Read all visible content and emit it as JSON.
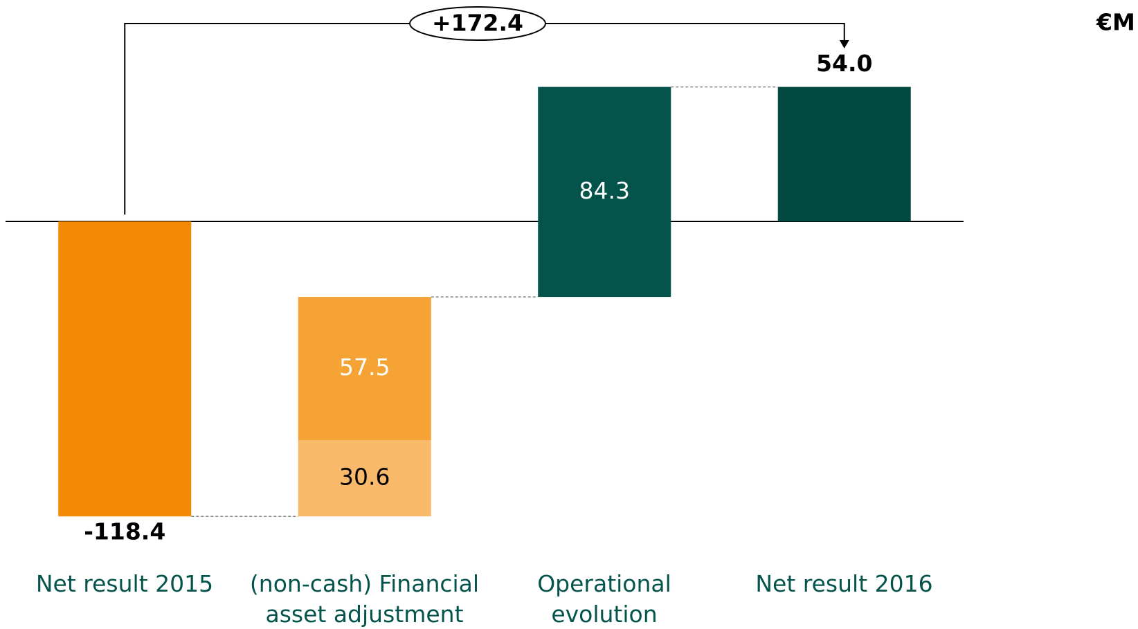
{
  "chart_data": {
    "type": "waterfall",
    "unit": "€M",
    "annotation": "+172.4",
    "categories": [
      "Net result 2015",
      "(non-cash) Financial asset adjustment",
      "Operational evolution",
      "Net result 2016"
    ],
    "measure": [
      "absolute",
      "relative",
      "relative",
      "total"
    ],
    "series": [
      {
        "color": "#f38a06",
        "label_color": "#000000",
        "values": [
          -118.4,
          null,
          null,
          null
        ],
        "value_labels": [
          "-118.4",
          null,
          null,
          null
        ]
      },
      {
        "color": "#f9b96a",
        "label_color": "#000000",
        "values": [
          null,
          30.6,
          null,
          null
        ],
        "value_labels": [
          null,
          "30.6",
          null,
          null
        ]
      },
      {
        "color": "#f5a334",
        "label_color": "#ffffff",
        "values": [
          null,
          57.5,
          null,
          null
        ],
        "value_labels": [
          null,
          "57.5",
          null,
          null
        ]
      },
      {
        "color": "#04544c",
        "label_color": "#ffffff",
        "values": [
          null,
          null,
          84.3,
          null
        ],
        "value_labels": [
          null,
          null,
          "84.3",
          null
        ]
      },
      {
        "color": "#024a40",
        "label_color": "#000000",
        "values": [
          null,
          null,
          null,
          54.0
        ],
        "value_labels": [
          null,
          null,
          null,
          "54.0"
        ]
      }
    ],
    "ylim": [
      -130,
      70
    ]
  }
}
